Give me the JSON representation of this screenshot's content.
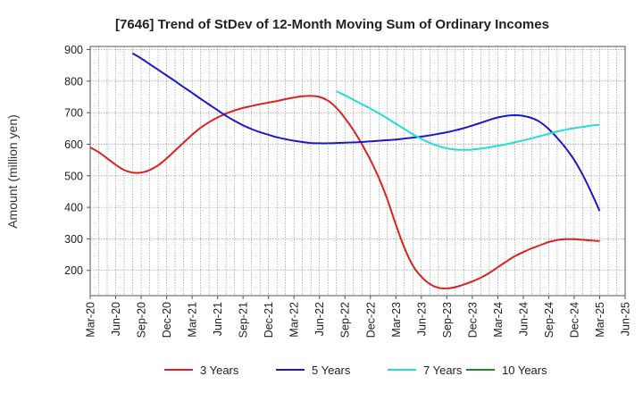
{
  "chart_data": {
    "type": "line",
    "title": "[7646]  Trend of StDev of 12-Month Moving Sum of Ordinary Incomes",
    "ylabel": "Amount (million yen)",
    "xlabel": "",
    "ylim": [
      120,
      910
    ],
    "yticks": [
      200,
      300,
      400,
      500,
      600,
      700,
      800,
      900
    ],
    "grid": true,
    "legend_position": "bottom",
    "x_ticks": [
      "Mar-20",
      "Jun-20",
      "Sep-20",
      "Dec-20",
      "Mar-21",
      "Jun-21",
      "Sep-21",
      "Dec-21",
      "Mar-22",
      "Jun-22",
      "Sep-22",
      "Dec-22",
      "Mar-23",
      "Jun-23",
      "Sep-23",
      "Dec-23",
      "Mar-24",
      "Jun-24",
      "Sep-24",
      "Dec-24",
      "Mar-25",
      "Jun-25"
    ],
    "series": [
      {
        "name": "3 Years",
        "color": "#e02020",
        "points": [
          [
            "Mar-20",
            590
          ],
          [
            "Apr-20",
            575
          ],
          [
            "May-20",
            555
          ],
          [
            "Jun-20",
            535
          ],
          [
            "Jul-20",
            518
          ],
          [
            "Aug-20",
            510
          ],
          [
            "Sep-20",
            510
          ],
          [
            "Oct-20",
            518
          ],
          [
            "Nov-20",
            533
          ],
          [
            "Dec-20",
            555
          ],
          [
            "Jan-21",
            580
          ],
          [
            "Feb-21",
            605
          ],
          [
            "Mar-21",
            630
          ],
          [
            "Apr-21",
            652
          ],
          [
            "May-21",
            670
          ],
          [
            "Jun-21",
            685
          ],
          [
            "Jul-21",
            697
          ],
          [
            "Aug-21",
            707
          ],
          [
            "Sep-21",
            715
          ],
          [
            "Oct-21",
            721
          ],
          [
            "Nov-21",
            727
          ],
          [
            "Dec-21",
            732
          ],
          [
            "Jan-22",
            737
          ],
          [
            "Feb-22",
            743
          ],
          [
            "Mar-22",
            748
          ],
          [
            "Apr-22",
            752
          ],
          [
            "May-22",
            753
          ],
          [
            "Jun-22",
            750
          ],
          [
            "Jul-22",
            738
          ],
          [
            "Aug-22",
            715
          ],
          [
            "Sep-22",
            683
          ],
          [
            "Oct-22",
            645
          ],
          [
            "Nov-22",
            600
          ],
          [
            "Dec-22",
            550
          ],
          [
            "Jan-23",
            493
          ],
          [
            "Feb-23",
            425
          ],
          [
            "Mar-23",
            345
          ],
          [
            "Apr-23",
            272
          ],
          [
            "May-23",
            215
          ],
          [
            "Jun-23",
            180
          ],
          [
            "Jul-23",
            157
          ],
          [
            "Aug-23",
            145
          ],
          [
            "Sep-23",
            143
          ],
          [
            "Oct-23",
            147
          ],
          [
            "Nov-23",
            155
          ],
          [
            "Dec-23",
            165
          ],
          [
            "Jan-24",
            177
          ],
          [
            "Feb-24",
            192
          ],
          [
            "Mar-24",
            210
          ],
          [
            "Apr-24",
            228
          ],
          [
            "May-24",
            245
          ],
          [
            "Jun-24",
            258
          ],
          [
            "Jul-24",
            270
          ],
          [
            "Aug-24",
            280
          ],
          [
            "Sep-24",
            290
          ],
          [
            "Oct-24",
            296
          ],
          [
            "Nov-24",
            299
          ],
          [
            "Dec-24",
            299
          ],
          [
            "Jan-25",
            297
          ],
          [
            "Feb-25",
            295
          ],
          [
            "Mar-25",
            293
          ]
        ]
      },
      {
        "name": "5 Years",
        "color": "#1a1acc",
        "points": [
          [
            "Aug-20",
            888
          ],
          [
            "Sep-20",
            872
          ],
          [
            "Oct-20",
            854
          ],
          [
            "Nov-20",
            836
          ],
          [
            "Dec-20",
            818
          ],
          [
            "Jan-21",
            800
          ],
          [
            "Feb-21",
            781
          ],
          [
            "Mar-21",
            763
          ],
          [
            "Apr-21",
            744
          ],
          [
            "May-21",
            726
          ],
          [
            "Jun-21",
            708
          ],
          [
            "Jul-21",
            690
          ],
          [
            "Aug-21",
            674
          ],
          [
            "Sep-21",
            660
          ],
          [
            "Oct-21",
            648
          ],
          [
            "Nov-21",
            638
          ],
          [
            "Dec-21",
            630
          ],
          [
            "Jan-22",
            622
          ],
          [
            "Feb-22",
            616
          ],
          [
            "Mar-22",
            611
          ],
          [
            "Apr-22",
            607
          ],
          [
            "May-22",
            604
          ],
          [
            "Jun-22",
            603
          ],
          [
            "Jul-22",
            603
          ],
          [
            "Aug-22",
            604
          ],
          [
            "Sep-22",
            605
          ],
          [
            "Oct-22",
            606
          ],
          [
            "Nov-22",
            607
          ],
          [
            "Dec-22",
            609
          ],
          [
            "Jan-23",
            611
          ],
          [
            "Feb-23",
            613
          ],
          [
            "Mar-23",
            615
          ],
          [
            "Apr-23",
            618
          ],
          [
            "May-23",
            621
          ],
          [
            "Jun-23",
            624
          ],
          [
            "Jul-23",
            628
          ],
          [
            "Aug-23",
            633
          ],
          [
            "Sep-23",
            638
          ],
          [
            "Oct-23",
            644
          ],
          [
            "Nov-23",
            651
          ],
          [
            "Dec-23",
            659
          ],
          [
            "Jan-24",
            668
          ],
          [
            "Feb-24",
            677
          ],
          [
            "Mar-24",
            685
          ],
          [
            "Apr-24",
            690
          ],
          [
            "May-24",
            692
          ],
          [
            "Jun-24",
            690
          ],
          [
            "Jul-24",
            683
          ],
          [
            "Aug-24",
            670
          ],
          [
            "Sep-24",
            648
          ],
          [
            "Oct-24",
            620
          ],
          [
            "Nov-24",
            588
          ],
          [
            "Dec-24",
            550
          ],
          [
            "Jan-25",
            503
          ],
          [
            "Feb-25",
            448
          ],
          [
            "Mar-25",
            388
          ]
        ]
      },
      {
        "name": "7 Years",
        "color": "#22dddd",
        "points": [
          [
            "Aug-22",
            768
          ],
          [
            "Sep-22",
            755
          ],
          [
            "Oct-22",
            741
          ],
          [
            "Nov-22",
            727
          ],
          [
            "Dec-22",
            713
          ],
          [
            "Jan-23",
            698
          ],
          [
            "Feb-23",
            682
          ],
          [
            "Mar-23",
            665
          ],
          [
            "Apr-23",
            648
          ],
          [
            "May-23",
            632
          ],
          [
            "Jun-23",
            617
          ],
          [
            "Jul-23",
            604
          ],
          [
            "Aug-23",
            594
          ],
          [
            "Sep-23",
            587
          ],
          [
            "Oct-23",
            583
          ],
          [
            "Nov-23",
            582
          ],
          [
            "Dec-23",
            583
          ],
          [
            "Jan-24",
            586
          ],
          [
            "Feb-24",
            590
          ],
          [
            "Mar-24",
            595
          ],
          [
            "Apr-24",
            600
          ],
          [
            "May-24",
            606
          ],
          [
            "Jun-24",
            612
          ],
          [
            "Jul-24",
            619
          ],
          [
            "Aug-24",
            626
          ],
          [
            "Sep-24",
            633
          ],
          [
            "Oct-24",
            640
          ],
          [
            "Nov-24",
            646
          ],
          [
            "Dec-24",
            651
          ],
          [
            "Jan-25",
            655
          ],
          [
            "Feb-25",
            659
          ],
          [
            "Mar-25",
            662
          ]
        ]
      },
      {
        "name": "10 Years",
        "color": "#228822",
        "points": []
      }
    ]
  }
}
